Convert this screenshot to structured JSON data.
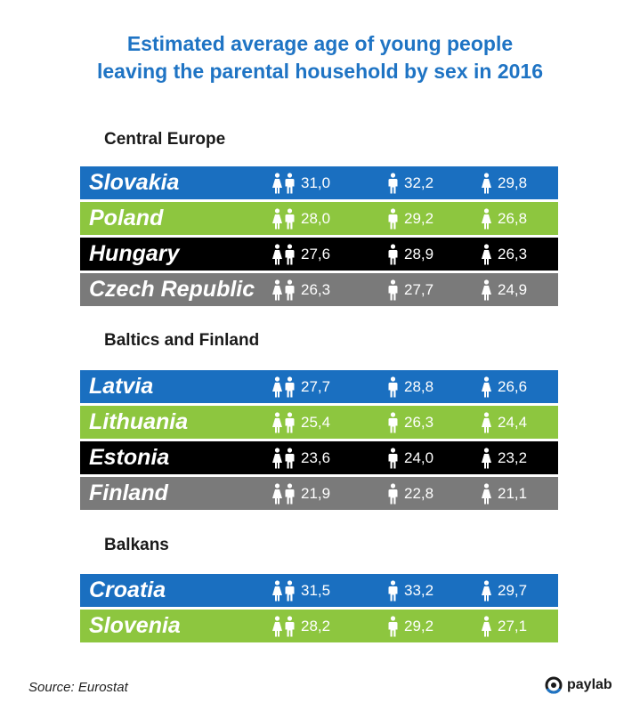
{
  "title_line1": "Estimated average age of young people",
  "title_line2": "leaving the parental household by sex in 2016",
  "source_label": "Source:",
  "source_value": "Eurostat",
  "logo_text": "paylab",
  "colors": {
    "title": "#1f74c4",
    "blue": "#1a6fc0",
    "green": "#8dc63f",
    "black": "#000000",
    "gray": "#7a7a7a"
  },
  "chart_data": {
    "type": "table",
    "columns": [
      "total-icon",
      "male-icon",
      "female-icon"
    ],
    "groups": [
      {
        "name": "Central Europe",
        "rows": [
          {
            "country": "Slovakia",
            "total": "31,0",
            "male": "32,2",
            "female": "29,8",
            "color": "#1a6fc0"
          },
          {
            "country": "Poland",
            "total": "28,0",
            "male": "29,2",
            "female": "26,8",
            "color": "#8dc63f"
          },
          {
            "country": "Hungary",
            "total": "27,6",
            "male": "28,9",
            "female": "26,3",
            "color": "#000000"
          },
          {
            "country": "Czech Republic",
            "total": "26,3",
            "male": "27,7",
            "female": "24,9",
            "color": "#7a7a7a"
          }
        ]
      },
      {
        "name": "Baltics and Finland",
        "rows": [
          {
            "country": "Latvia",
            "total": "27,7",
            "male": "28,8",
            "female": "26,6",
            "color": "#1a6fc0"
          },
          {
            "country": "Lithuania",
            "total": "25,4",
            "male": "26,3",
            "female": "24,4",
            "color": "#8dc63f"
          },
          {
            "country": "Estonia",
            "total": "23,6",
            "male": "24,0",
            "female": "23,2",
            "color": "#000000"
          },
          {
            "country": "Finland",
            "total": "21,9",
            "male": "22,8",
            "female": "21,1",
            "color": "#7a7a7a"
          }
        ]
      },
      {
        "name": "Balkans",
        "rows": [
          {
            "country": "Croatia",
            "total": "31,5",
            "male": "33,2",
            "female": "29,7",
            "color": "#1a6fc0"
          },
          {
            "country": "Slovenia",
            "total": "28,2",
            "male": "29,2",
            "female": "27,1",
            "color": "#8dc63f"
          }
        ]
      }
    ]
  }
}
